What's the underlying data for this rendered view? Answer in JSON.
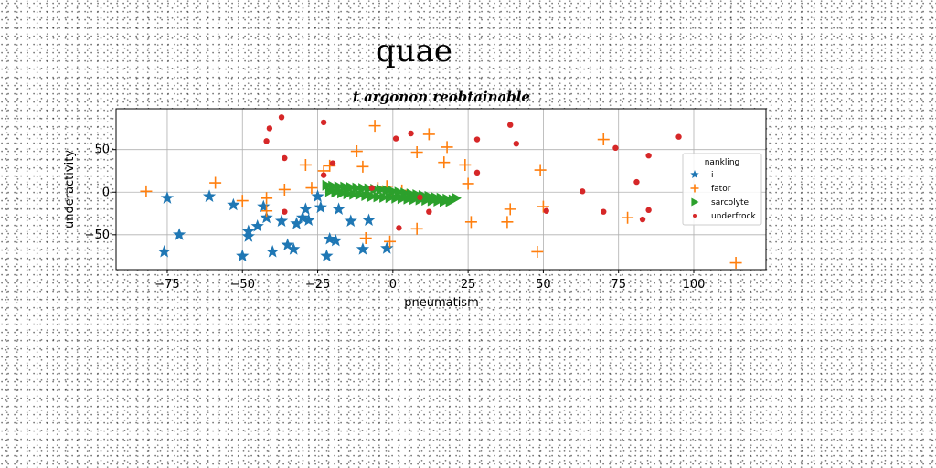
{
  "chart_data": {
    "type": "scatter",
    "suptitle": "quae",
    "title": "t argonon reobtainable",
    "xlabel": "pneumatism",
    "ylabel": "underactivity",
    "xlim": [
      -92,
      124
    ],
    "ylim": [
      -91,
      98
    ],
    "xticks": [
      -75,
      -50,
      -25,
      0,
      25,
      50,
      75,
      100
    ],
    "yticks": [
      -50,
      0,
      50
    ],
    "grid": true,
    "legend": {
      "title": "nankling",
      "position": "center-right"
    },
    "series": [
      {
        "name": "i",
        "marker": "star",
        "color": "#1f77b4",
        "points": [
          [
            -75,
            -7
          ],
          [
            -61,
            -5
          ],
          [
            -71,
            -50
          ],
          [
            -76,
            -70
          ],
          [
            -53,
            -15
          ],
          [
            -50,
            -75
          ],
          [
            -48,
            -52
          ],
          [
            -45,
            -40
          ],
          [
            -43,
            -17
          ],
          [
            -42,
            -30
          ],
          [
            -40,
            -70
          ],
          [
            -37,
            -34
          ],
          [
            -35,
            -62
          ],
          [
            -33,
            -67
          ],
          [
            -32,
            -37
          ],
          [
            -30,
            -30
          ],
          [
            -29,
            -20
          ],
          [
            -28,
            -33
          ],
          [
            -25,
            -5
          ],
          [
            -24,
            -18
          ],
          [
            -22,
            -75
          ],
          [
            -21,
            -55
          ],
          [
            -19,
            -57
          ],
          [
            -18,
            -20
          ],
          [
            -14,
            -34
          ],
          [
            -10,
            -67
          ],
          [
            -8,
            -33
          ],
          [
            -2,
            -66
          ],
          [
            -48,
            -46
          ]
        ]
      },
      {
        "name": "fator",
        "marker": "plus",
        "color": "#ff7f0e",
        "points": [
          [
            -82,
            1
          ],
          [
            -59,
            11
          ],
          [
            -50,
            -10
          ],
          [
            -42,
            -7
          ],
          [
            -42,
            -22
          ],
          [
            -36,
            3
          ],
          [
            -29,
            32
          ],
          [
            -27,
            5
          ],
          [
            -23,
            25
          ],
          [
            -21,
            31
          ],
          [
            -12,
            48
          ],
          [
            -10,
            30
          ],
          [
            -9,
            -54
          ],
          [
            -6,
            78
          ],
          [
            -5,
            5
          ],
          [
            -2,
            7
          ],
          [
            -1,
            -58
          ],
          [
            0,
            -4
          ],
          [
            3,
            2
          ],
          [
            8,
            47
          ],
          [
            8,
            -43
          ],
          [
            12,
            68
          ],
          [
            17,
            35
          ],
          [
            18,
            53
          ],
          [
            24,
            32
          ],
          [
            25,
            10
          ],
          [
            26,
            -35
          ],
          [
            38,
            -35
          ],
          [
            39,
            -20
          ],
          [
            48,
            -70
          ],
          [
            49,
            26
          ],
          [
            50,
            -17
          ],
          [
            70,
            62
          ],
          [
            78,
            -30
          ],
          [
            114,
            -83
          ]
        ]
      },
      {
        "name": "sarcolyte",
        "marker": "triangle-right",
        "color": "#2ca02c",
        "points": [
          [
            -22,
            8
          ],
          [
            -20,
            7
          ],
          [
            -18,
            6.5
          ],
          [
            -16,
            6
          ],
          [
            -14,
            5.5
          ],
          [
            -12,
            5
          ],
          [
            -10,
            4.5
          ],
          [
            -8,
            4
          ],
          [
            -6,
            3.5
          ],
          [
            -4,
            3
          ],
          [
            -2,
            2
          ],
          [
            0,
            1
          ],
          [
            2,
            0
          ],
          [
            4,
            -1
          ],
          [
            6,
            -2
          ],
          [
            8,
            -3
          ],
          [
            10,
            -4
          ],
          [
            12,
            -5
          ],
          [
            14,
            -6
          ],
          [
            16,
            -7
          ],
          [
            18,
            -8
          ],
          [
            20,
            -9
          ],
          [
            -21,
            1
          ],
          [
            -19,
            0
          ],
          [
            -17,
            -1
          ],
          [
            -15,
            -2
          ],
          [
            -13,
            -2.5
          ],
          [
            -11,
            -3
          ],
          [
            -9,
            -4
          ],
          [
            -7,
            -5
          ],
          [
            -5,
            -5.5
          ],
          [
            -3,
            -6
          ],
          [
            -1,
            -6.5
          ],
          [
            1,
            -7
          ],
          [
            3,
            -7.5
          ],
          [
            5,
            -8
          ],
          [
            7,
            -8.5
          ],
          [
            9,
            -9
          ],
          [
            11,
            -9.5
          ],
          [
            13,
            -10
          ],
          [
            15,
            -10.5
          ],
          [
            17,
            -11
          ],
          [
            19,
            -11
          ],
          [
            21,
            -7
          ]
        ]
      },
      {
        "name": "underfrock",
        "marker": "dot",
        "color": "#d62728",
        "points": [
          [
            -42,
            60
          ],
          [
            -41,
            75
          ],
          [
            -37,
            88
          ],
          [
            -36,
            40
          ],
          [
            -36,
            -23
          ],
          [
            -23,
            82
          ],
          [
            -23,
            20
          ],
          [
            -20,
            34
          ],
          [
            -7,
            5
          ],
          [
            1,
            63
          ],
          [
            2,
            -42
          ],
          [
            6,
            69
          ],
          [
            9,
            -6
          ],
          [
            12,
            -23
          ],
          [
            28,
            62
          ],
          [
            28,
            23
          ],
          [
            39,
            79
          ],
          [
            41,
            57
          ],
          [
            51,
            -22
          ],
          [
            63,
            1
          ],
          [
            70,
            -23
          ],
          [
            74,
            52
          ],
          [
            81,
            12
          ],
          [
            83,
            -32
          ],
          [
            85,
            43
          ],
          [
            85,
            -21
          ],
          [
            95,
            65
          ]
        ]
      }
    ]
  }
}
